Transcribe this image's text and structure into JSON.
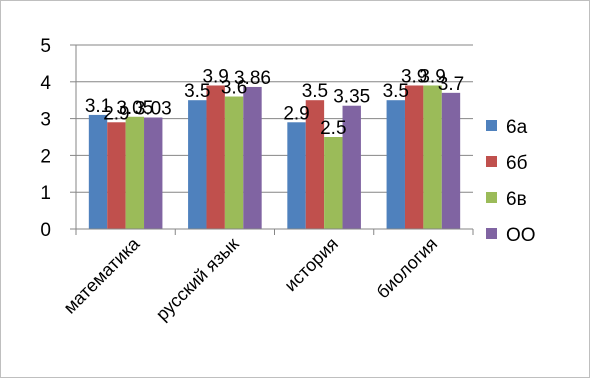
{
  "chart_data": {
    "type": "bar",
    "categories": [
      "математика",
      "русский язык",
      "история",
      "биология"
    ],
    "series": [
      {
        "name": "6а",
        "color": "#4F81BD",
        "values": [
          3.1,
          3.5,
          2.9,
          3.5
        ]
      },
      {
        "name": "6б",
        "color": "#C0504D",
        "values": [
          2.9,
          3.9,
          3.5,
          3.9
        ]
      },
      {
        "name": "6в",
        "color": "#9BBB59",
        "values": [
          3.05,
          3.6,
          2.5,
          3.9
        ]
      },
      {
        "name": "ОО",
        "color": "#8064A2",
        "values": [
          3.03,
          3.86,
          3.35,
          3.7
        ]
      }
    ],
    "data_labels": [
      [
        "3.1",
        "3.5",
        "2.9",
        "3.5"
      ],
      [
        "2.9",
        "3.9",
        "3.5",
        "3.9"
      ],
      [
        "3.05",
        "3.6",
        "2.5",
        "3.9"
      ],
      [
        "3.03",
        "3.86",
        "3.35",
        "3.7"
      ]
    ],
    "y_ticks": [
      "0",
      "1",
      "2",
      "3",
      "4",
      "5"
    ],
    "ylim": [
      0,
      5
    ],
    "grid": true,
    "legend_position": "right",
    "title": "",
    "xlabel": "",
    "ylabel": ""
  }
}
